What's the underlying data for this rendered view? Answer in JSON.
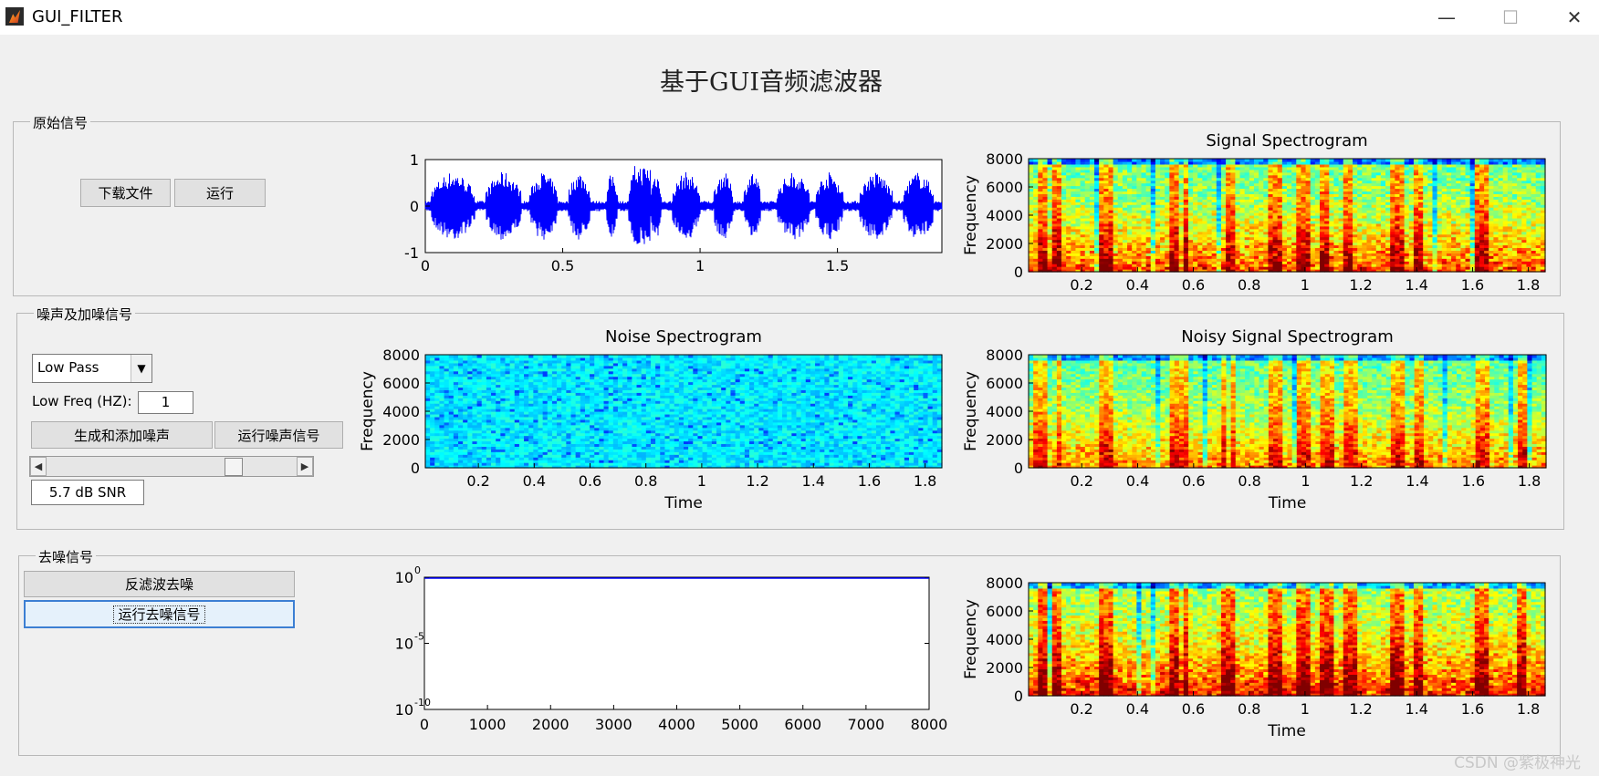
{
  "window": {
    "title": "GUI_FILTER",
    "minimize": "—",
    "maximize": "☐",
    "close": "✕"
  },
  "main_title": "基于GUI音频滤波器",
  "panel1": {
    "title": "原始信号",
    "download_label": "下载文件",
    "run_label": "运行"
  },
  "panel2": {
    "title": "噪声及加噪信号",
    "filter_select": "Low Pass",
    "low_freq_label": "Low Freq (HZ):",
    "low_freq_value": "1",
    "generate_label": "生成和添加噪声",
    "run_noise_label": "运行噪声信号",
    "snr_value": "5.7 dB SNR",
    "snr_slider_fraction": 0.76
  },
  "panel3": {
    "title": "去噪信号",
    "filter_label": "反滤波去噪",
    "run_label": "运行去噪信号"
  },
  "watermark": "CSDN @紫极神光",
  "colors": {
    "waveform": "#0000ff",
    "frame": "#b8b8b8",
    "focus": "#3c7fd3"
  },
  "chart_data": [
    {
      "id": "waveform",
      "type": "line",
      "xlim": [
        0,
        1.88
      ],
      "ylim": [
        -1,
        1
      ],
      "xticks": [
        "0",
        "0.5",
        "1",
        "1.5"
      ],
      "yticks": [
        "1",
        "0",
        "-1"
      ],
      "xlabel": "",
      "ylabel": ""
    },
    {
      "id": "signal_spec",
      "type": "heatmap",
      "title": "Signal Spectrogram",
      "xlabel": "",
      "ylabel": "Frequency",
      "yticks": [
        "8000",
        "6000",
        "4000",
        "2000",
        "0"
      ],
      "xticks": [
        "0.2",
        "0.4",
        "0.6",
        "0.8",
        "1",
        "1.2",
        "1.4",
        "1.6",
        "1.8"
      ]
    },
    {
      "id": "noise_spec",
      "type": "heatmap",
      "title": "Noise Spectrogram",
      "xlabel": "Time",
      "ylabel": "Frequency",
      "yticks": [
        "8000",
        "6000",
        "4000",
        "2000",
        "0"
      ],
      "xticks": [
        "0.2",
        "0.4",
        "0.6",
        "0.8",
        "1",
        "1.2",
        "1.4",
        "1.6",
        "1.8"
      ]
    },
    {
      "id": "noisy_spec",
      "type": "heatmap",
      "title": "Noisy Signal Spectrogram",
      "xlabel": "Time",
      "ylabel": "Frequency",
      "yticks": [
        "8000",
        "6000",
        "4000",
        "2000",
        "0"
      ],
      "xticks": [
        "0.2",
        "0.4",
        "0.6",
        "0.8",
        "1",
        "1.2",
        "1.4",
        "1.6",
        "1.8"
      ]
    },
    {
      "id": "filter_response",
      "type": "line",
      "xlim": [
        0,
        8000
      ],
      "ylim": [
        1e-10,
        1
      ],
      "yscale": "log",
      "xticks": [
        "0",
        "1000",
        "2000",
        "3000",
        "4000",
        "5000",
        "6000",
        "7000",
        "8000"
      ],
      "yticks": [
        {
          "base": "10",
          "exp": "0"
        },
        {
          "base": "10",
          "exp": "-5"
        },
        {
          "base": "10",
          "exp": "-10"
        }
      ],
      "x": [
        0,
        8000
      ],
      "y": [
        1,
        1
      ]
    },
    {
      "id": "denoised_spec",
      "type": "heatmap",
      "title": "",
      "xlabel": "Time",
      "ylabel": "Frequency",
      "yticks": [
        "8000",
        "6000",
        "4000",
        "2000",
        "0"
      ],
      "xticks": [
        "0.2",
        "0.4",
        "0.6",
        "0.8",
        "1",
        "1.2",
        "1.4",
        "1.6",
        "1.8"
      ]
    }
  ]
}
